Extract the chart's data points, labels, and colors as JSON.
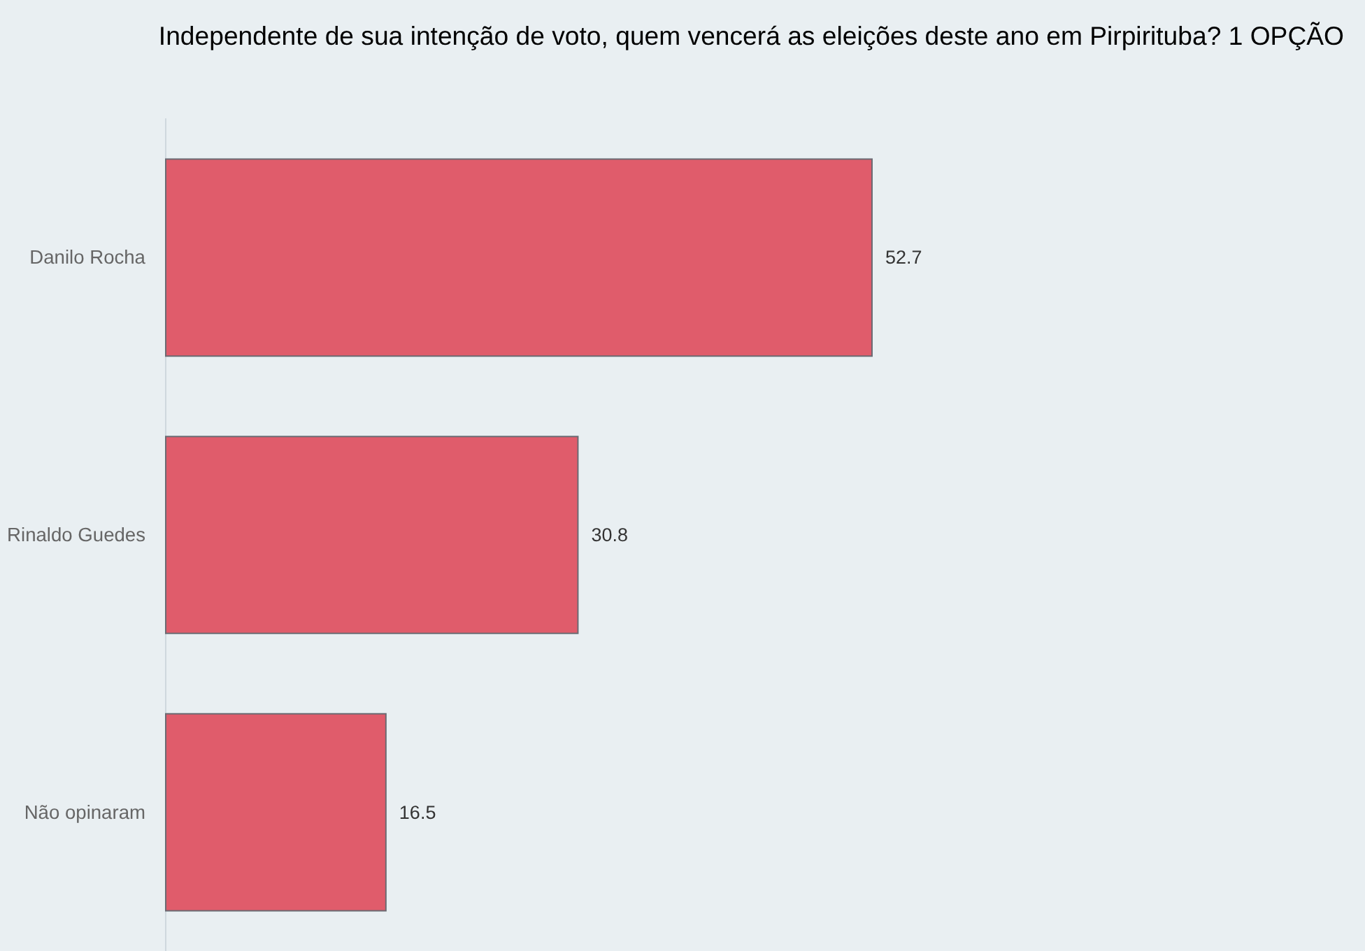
{
  "chart_data": {
    "type": "bar",
    "orientation": "horizontal",
    "title": "Independente de sua intenção de voto, quem vencerá as eleições deste ano em Pirpirituba? 1 OPÇÃO",
    "categories": [
      "Danilo Rocha",
      "Rinaldo Guedes",
      "Não opinaram"
    ],
    "values": [
      52.7,
      30.8,
      16.5
    ],
    "color": "#e05c6b",
    "data_labels": true,
    "tick_labels": "y"
  }
}
